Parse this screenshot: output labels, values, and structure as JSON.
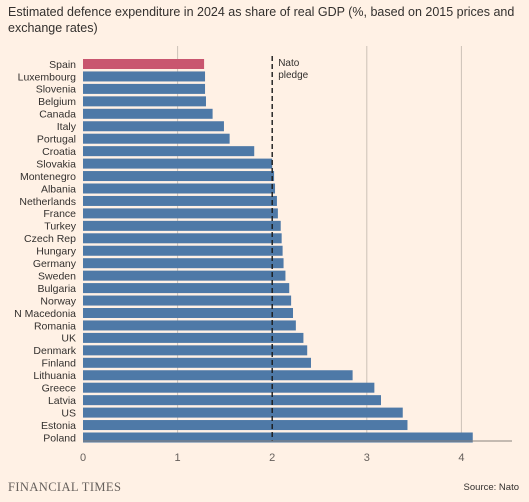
{
  "title": "Estimated defence expenditure in 2024 as share of real GDP (%, based on 2015 prices and exchange rates)",
  "brand": "FINANCIAL TIMES",
  "source": "Source: Nato",
  "colors": {
    "background": "#fff1e5",
    "bar": "#4e79a7",
    "highlight": "#c9566f",
    "grid": "#ccc1b7",
    "pledge_line": "#1a1a1a"
  },
  "chart_data": {
    "type": "bar",
    "orientation": "horizontal",
    "categories": [
      "Spain",
      "Luxembourg",
      "Slovenia",
      "Belgium",
      "Canada",
      "Italy",
      "Portugal",
      "Croatia",
      "Slovakia",
      "Montenegro",
      "Albania",
      "Netherlands",
      "France",
      "Turkey",
      "Czech Rep",
      "Hungary",
      "Germany",
      "Sweden",
      "Bulgaria",
      "Norway",
      "N Macedonia",
      "Romania",
      "UK",
      "Denmark",
      "Finland",
      "Lithuania",
      "Greece",
      "Latvia",
      "US",
      "Estonia",
      "Poland"
    ],
    "values": [
      1.28,
      1.29,
      1.29,
      1.3,
      1.37,
      1.49,
      1.55,
      1.81,
      2.0,
      2.02,
      2.03,
      2.05,
      2.06,
      2.09,
      2.1,
      2.11,
      2.12,
      2.14,
      2.18,
      2.2,
      2.22,
      2.25,
      2.33,
      2.37,
      2.41,
      2.85,
      3.08,
      3.15,
      3.38,
      3.43,
      4.12
    ],
    "highlight": "Spain",
    "xlim": [
      0,
      4.5
    ],
    "xticks": [
      0,
      1,
      2,
      3,
      4
    ],
    "grid": true,
    "reference_line": {
      "value": 2,
      "label": [
        "Nato",
        "pledge"
      ]
    },
    "xlabel": "",
    "ylabel": ""
  }
}
